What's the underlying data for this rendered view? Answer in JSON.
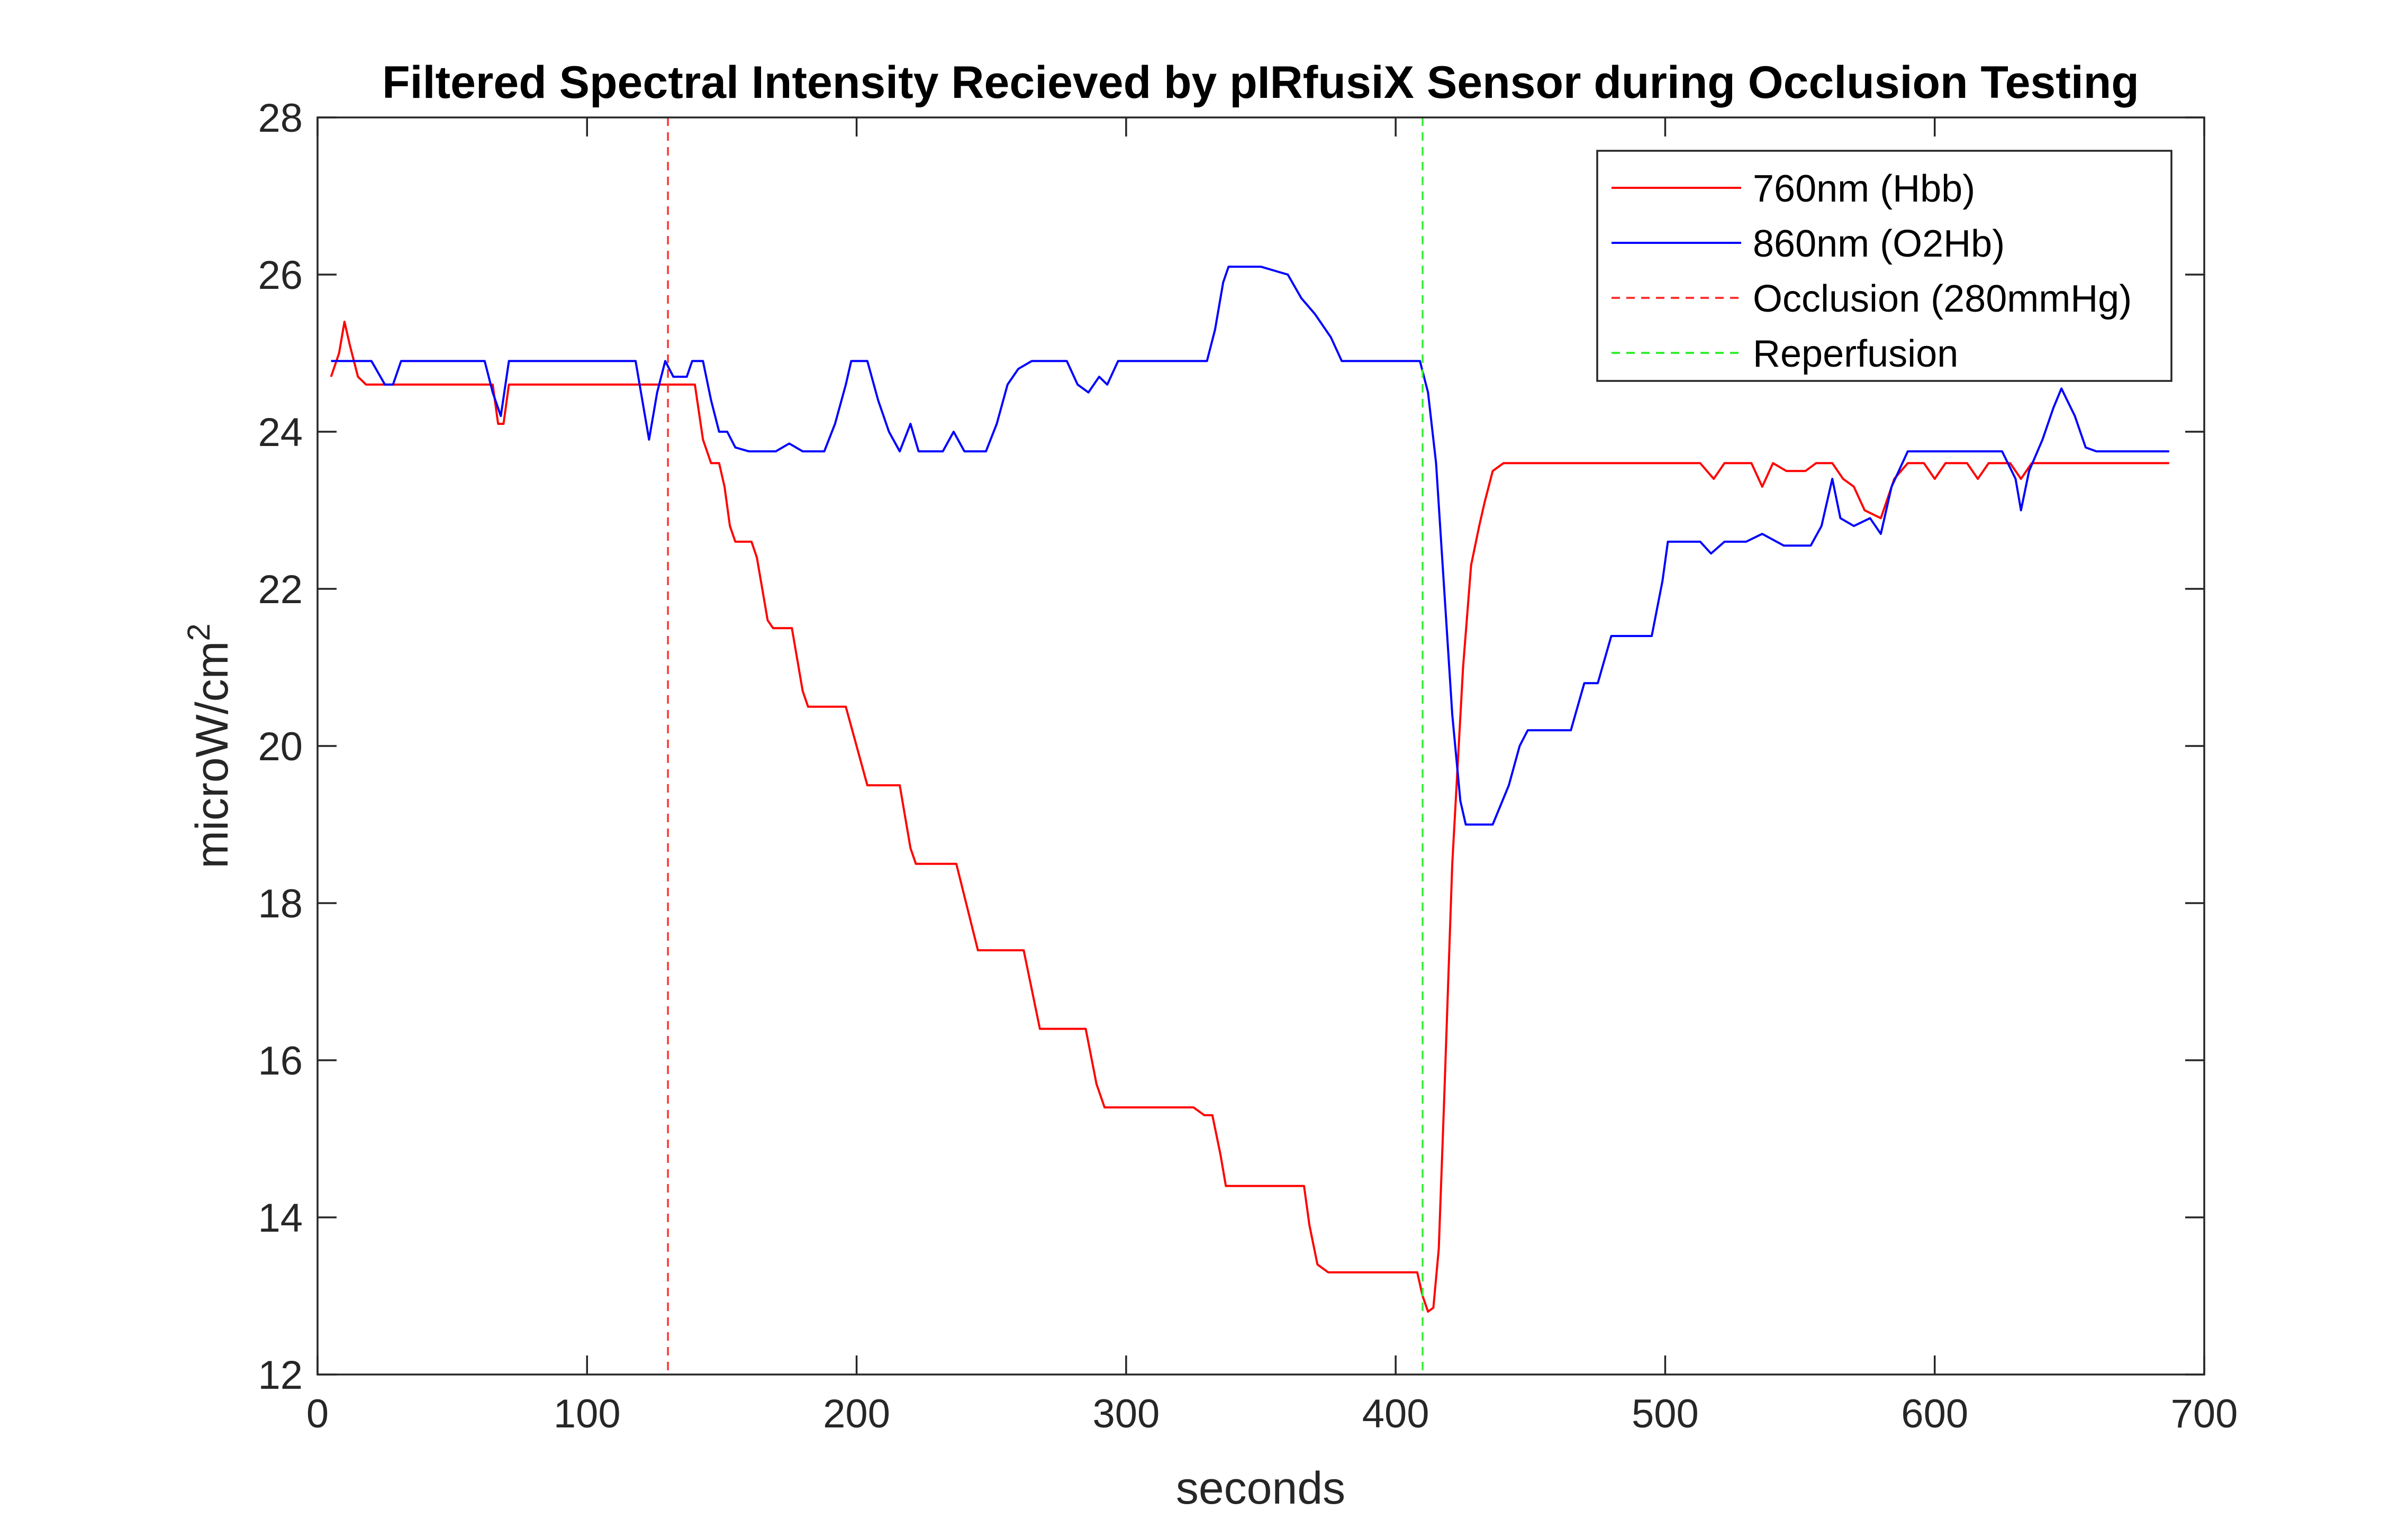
{
  "chart_data": {
    "type": "line",
    "title": "Filtered Spectral Intensity Recieved by pIRfusiX Sensor during Occlusion Testing",
    "xlabel": "seconds",
    "ylabel": "microW/cm",
    "ylabel_superscript": "2",
    "xlim": [
      0,
      700
    ],
    "ylim": [
      12,
      28
    ],
    "xticks": [
      "0",
      "100",
      "200",
      "300",
      "400",
      "500",
      "600",
      "700"
    ],
    "yticks": [
      "12",
      "14",
      "16",
      "18",
      "20",
      "22",
      "24",
      "26",
      "28"
    ],
    "grid": false,
    "legend_position": "top-right",
    "series": [
      {
        "name": "760nm (Hbb)",
        "color": "#ff0000",
        "dash": "solid",
        "points": [
          [
            5,
            24.7
          ],
          [
            8,
            25.0
          ],
          [
            10,
            25.4
          ],
          [
            12,
            25.1
          ],
          [
            15,
            24.7
          ],
          [
            18,
            24.6
          ],
          [
            25,
            24.6
          ],
          [
            60,
            24.6
          ],
          [
            65,
            24.6
          ],
          [
            67,
            24.1
          ],
          [
            69,
            24.1
          ],
          [
            71,
            24.6
          ],
          [
            100,
            24.6
          ],
          [
            125,
            24.6
          ],
          [
            140,
            24.6
          ],
          [
            143,
            23.9
          ],
          [
            146,
            23.6
          ],
          [
            149,
            23.6
          ],
          [
            151,
            23.3
          ],
          [
            153,
            22.8
          ],
          [
            155,
            22.6
          ],
          [
            161,
            22.6
          ],
          [
            163,
            22.4
          ],
          [
            165,
            22.0
          ],
          [
            167,
            21.6
          ],
          [
            169,
            21.5
          ],
          [
            176,
            21.5
          ],
          [
            180,
            20.7
          ],
          [
            182,
            20.5
          ],
          [
            196,
            20.5
          ],
          [
            204,
            19.5
          ],
          [
            216,
            19.5
          ],
          [
            220,
            18.7
          ],
          [
            222,
            18.5
          ],
          [
            237,
            18.5
          ],
          [
            245,
            17.4
          ],
          [
            262,
            17.4
          ],
          [
            268,
            16.4
          ],
          [
            285,
            16.4
          ],
          [
            289,
            15.7
          ],
          [
            292,
            15.4
          ],
          [
            297,
            15.4
          ],
          [
            310,
            15.4
          ],
          [
            325,
            15.4
          ],
          [
            329,
            15.3
          ],
          [
            332,
            15.3
          ],
          [
            335,
            14.8
          ],
          [
            337,
            14.4
          ],
          [
            340,
            14.4
          ],
          [
            352,
            14.4
          ],
          [
            366,
            14.4
          ],
          [
            368,
            13.9
          ],
          [
            371,
            13.4
          ],
          [
            375,
            13.3
          ],
          [
            380,
            13.3
          ],
          [
            408,
            13.3
          ],
          [
            410,
            13.0
          ],
          [
            412,
            12.8
          ],
          [
            414,
            12.85
          ],
          [
            416,
            13.6
          ],
          [
            418,
            15.5
          ],
          [
            421,
            18.5
          ],
          [
            425,
            21.0
          ],
          [
            428,
            22.3
          ],
          [
            431,
            22.8
          ],
          [
            433,
            23.1
          ],
          [
            436,
            23.5
          ],
          [
            440,
            23.6
          ],
          [
            470,
            23.6
          ],
          [
            500,
            23.6
          ],
          [
            513,
            23.6
          ],
          [
            518,
            23.4
          ],
          [
            522,
            23.6
          ],
          [
            532,
            23.6
          ],
          [
            536,
            23.3
          ],
          [
            540,
            23.6
          ],
          [
            545,
            23.5
          ],
          [
            552,
            23.5
          ],
          [
            556,
            23.6
          ],
          [
            562,
            23.6
          ],
          [
            566,
            23.4
          ],
          [
            570,
            23.3
          ],
          [
            574,
            23.0
          ],
          [
            580,
            22.9
          ],
          [
            585,
            23.4
          ],
          [
            590,
            23.6
          ],
          [
            596,
            23.6
          ],
          [
            600,
            23.4
          ],
          [
            604,
            23.6
          ],
          [
            612,
            23.6
          ],
          [
            616,
            23.4
          ],
          [
            620,
            23.6
          ],
          [
            628,
            23.6
          ],
          [
            632,
            23.4
          ],
          [
            636,
            23.6
          ],
          [
            687,
            23.6
          ]
        ]
      },
      {
        "name": "860nm (O2Hb)",
        "color": "#0000ff",
        "dash": "solid",
        "points": [
          [
            5,
            24.9
          ],
          [
            20,
            24.9
          ],
          [
            25,
            24.6
          ],
          [
            28,
            24.6
          ],
          [
            31,
            24.9
          ],
          [
            62,
            24.9
          ],
          [
            65,
            24.5
          ],
          [
            68,
            24.2
          ],
          [
            71,
            24.9
          ],
          [
            100,
            24.9
          ],
          [
            118,
            24.9
          ],
          [
            121,
            24.3
          ],
          [
            123,
            23.9
          ],
          [
            126,
            24.5
          ],
          [
            129,
            24.9
          ],
          [
            132,
            24.7
          ],
          [
            137,
            24.7
          ],
          [
            139,
            24.9
          ],
          [
            143,
            24.9
          ],
          [
            146,
            24.4
          ],
          [
            149,
            24.0
          ],
          [
            152,
            24.0
          ],
          [
            155,
            23.8
          ],
          [
            160,
            23.75
          ],
          [
            170,
            23.75
          ],
          [
            175,
            23.85
          ],
          [
            180,
            23.75
          ],
          [
            188,
            23.75
          ],
          [
            192,
            24.1
          ],
          [
            196,
            24.6
          ],
          [
            198,
            24.9
          ],
          [
            204,
            24.9
          ],
          [
            208,
            24.4
          ],
          [
            212,
            24.0
          ],
          [
            216,
            23.75
          ],
          [
            220,
            24.1
          ],
          [
            223,
            23.75
          ],
          [
            232,
            23.75
          ],
          [
            236,
            24.0
          ],
          [
            240,
            23.75
          ],
          [
            248,
            23.75
          ],
          [
            252,
            24.1
          ],
          [
            256,
            24.6
          ],
          [
            260,
            24.8
          ],
          [
            265,
            24.9
          ],
          [
            278,
            24.9
          ],
          [
            282,
            24.6
          ],
          [
            286,
            24.5
          ],
          [
            290,
            24.7
          ],
          [
            293,
            24.6
          ],
          [
            297,
            24.9
          ],
          [
            315,
            24.9
          ],
          [
            330,
            24.9
          ],
          [
            333,
            25.3
          ],
          [
            336,
            25.9
          ],
          [
            338,
            26.1
          ],
          [
            350,
            26.1
          ],
          [
            360,
            26.0
          ],
          [
            365,
            25.7
          ],
          [
            370,
            25.5
          ],
          [
            376,
            25.2
          ],
          [
            380,
            24.9
          ],
          [
            400,
            24.9
          ],
          [
            409,
            24.9
          ],
          [
            412,
            24.5
          ],
          [
            415,
            23.6
          ],
          [
            418,
            22.0
          ],
          [
            421,
            20.4
          ],
          [
            424,
            19.3
          ],
          [
            426,
            19.0
          ],
          [
            436,
            19.0
          ],
          [
            442,
            19.5
          ],
          [
            446,
            20.0
          ],
          [
            449,
            20.2
          ],
          [
            465,
            20.2
          ],
          [
            470,
            20.8
          ],
          [
            475,
            20.8
          ],
          [
            480,
            21.4
          ],
          [
            492,
            21.4
          ],
          [
            495,
            21.4
          ],
          [
            499,
            22.1
          ],
          [
            501,
            22.6
          ],
          [
            513,
            22.6
          ],
          [
            517,
            22.45
          ],
          [
            522,
            22.6
          ],
          [
            530,
            22.6
          ],
          [
            536,
            22.7
          ],
          [
            544,
            22.55
          ],
          [
            554,
            22.55
          ],
          [
            558,
            22.8
          ],
          [
            562,
            23.4
          ],
          [
            565,
            22.9
          ],
          [
            570,
            22.8
          ],
          [
            576,
            22.9
          ],
          [
            580,
            22.7
          ],
          [
            584,
            23.3
          ],
          [
            590,
            23.75
          ],
          [
            605,
            23.75
          ],
          [
            625,
            23.75
          ],
          [
            630,
            23.4
          ],
          [
            632,
            23.0
          ],
          [
            635,
            23.5
          ],
          [
            640,
            23.9
          ],
          [
            644,
            24.3
          ],
          [
            647,
            24.55
          ],
          [
            652,
            24.2
          ],
          [
            656,
            23.8
          ],
          [
            660,
            23.75
          ],
          [
            687,
            23.75
          ]
        ]
      },
      {
        "name": "Occlusion (280mmHg)",
        "color": "#ff3333",
        "dash": "dashed",
        "vline_x": 130
      },
      {
        "name": "Reperfusion",
        "color": "#33ee33",
        "dash": "dashed",
        "vline_x": 410
      }
    ]
  }
}
